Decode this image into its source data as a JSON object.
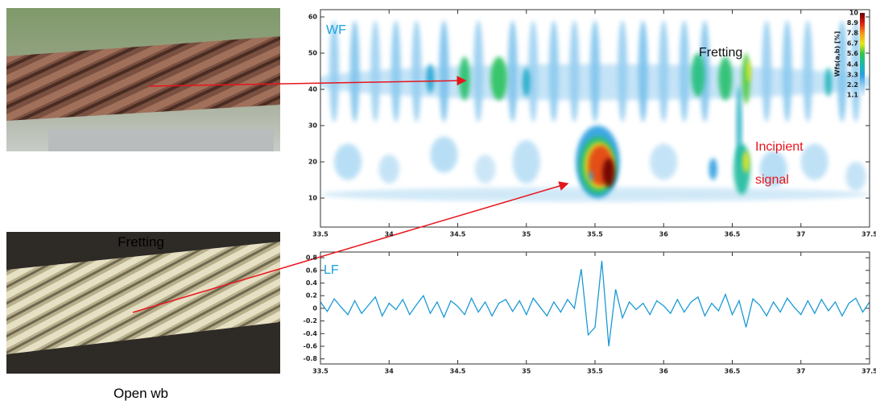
{
  "images": [
    {
      "caption": "Fretting"
    },
    {
      "caption": "Open wb"
    }
  ],
  "chart_data": [
    {
      "type": "heatmap",
      "panel_label": "WF",
      "annotations": [
        "Fretting",
        "Incipient",
        "signal"
      ],
      "xlim": [
        33.5,
        37.5
      ],
      "xticks": [
        33.5,
        34,
        34.5,
        35,
        35.5,
        36,
        36.5,
        37,
        37.5
      ],
      "ylim": [
        2,
        62
      ],
      "yticks": [
        10,
        20,
        30,
        40,
        50,
        60
      ],
      "colorbar": {
        "label": "Wfs(a,b) [%]",
        "ticks": [
          1.1,
          2.2,
          3.3,
          4.4,
          5.6,
          6.7,
          7.8,
          8.9,
          10
        ]
      },
      "blobs": [
        {
          "x": 35.5,
          "y": 42,
          "w": 4.2,
          "h": 10,
          "v": 1.6
        },
        {
          "x": 35.5,
          "y": 11,
          "w": 4,
          "h": 4,
          "v": 1.4
        },
        {
          "x": 33.6,
          "y": 45,
          "w": 0.07,
          "h": 28,
          "v": 2.2
        },
        {
          "x": 33.75,
          "y": 45,
          "w": 0.07,
          "h": 28,
          "v": 2.4
        },
        {
          "x": 33.9,
          "y": 45,
          "w": 0.07,
          "h": 28,
          "v": 2.1
        },
        {
          "x": 34.05,
          "y": 45,
          "w": 0.07,
          "h": 28,
          "v": 2.3
        },
        {
          "x": 34.2,
          "y": 45,
          "w": 0.07,
          "h": 28,
          "v": 2.2
        },
        {
          "x": 34.4,
          "y": 45,
          "w": 0.07,
          "h": 28,
          "v": 2.5
        },
        {
          "x": 34.65,
          "y": 45,
          "w": 0.07,
          "h": 28,
          "v": 2.2
        },
        {
          "x": 34.9,
          "y": 45,
          "w": 0.07,
          "h": 28,
          "v": 2.4
        },
        {
          "x": 35.05,
          "y": 45,
          "w": 0.07,
          "h": 28,
          "v": 2.1
        },
        {
          "x": 35.2,
          "y": 45,
          "w": 0.07,
          "h": 28,
          "v": 2.3
        },
        {
          "x": 35.35,
          "y": 45,
          "w": 0.07,
          "h": 28,
          "v": 2.2
        },
        {
          "x": 35.5,
          "y": 45,
          "w": 0.07,
          "h": 28,
          "v": 2.4
        },
        {
          "x": 35.7,
          "y": 45,
          "w": 0.07,
          "h": 28,
          "v": 2.2
        },
        {
          "x": 35.85,
          "y": 45,
          "w": 0.07,
          "h": 28,
          "v": 2.5
        },
        {
          "x": 36.0,
          "y": 45,
          "w": 0.07,
          "h": 28,
          "v": 2.2
        },
        {
          "x": 36.15,
          "y": 45,
          "w": 0.07,
          "h": 28,
          "v": 2.3
        },
        {
          "x": 36.3,
          "y": 45,
          "w": 0.07,
          "h": 28,
          "v": 2.4
        },
        {
          "x": 36.75,
          "y": 45,
          "w": 0.07,
          "h": 28,
          "v": 2.2
        },
        {
          "x": 36.9,
          "y": 45,
          "w": 0.07,
          "h": 28,
          "v": 2.3
        },
        {
          "x": 37.05,
          "y": 45,
          "w": 0.07,
          "h": 28,
          "v": 2.2
        },
        {
          "x": 37.3,
          "y": 45,
          "w": 0.07,
          "h": 28,
          "v": 2.4
        },
        {
          "x": 37.4,
          "y": 45,
          "w": 0.07,
          "h": 28,
          "v": 2.2
        },
        {
          "x": 33.7,
          "y": 20,
          "w": 0.2,
          "h": 10,
          "v": 1.8
        },
        {
          "x": 34.0,
          "y": 18,
          "w": 0.15,
          "h": 8,
          "v": 1.6
        },
        {
          "x": 34.4,
          "y": 22,
          "w": 0.2,
          "h": 10,
          "v": 1.8
        },
        {
          "x": 34.7,
          "y": 18,
          "w": 0.15,
          "h": 8,
          "v": 1.5
        },
        {
          "x": 35.0,
          "y": 20,
          "w": 0.2,
          "h": 12,
          "v": 1.7
        },
        {
          "x": 36.0,
          "y": 20,
          "w": 0.2,
          "h": 10,
          "v": 1.6
        },
        {
          "x": 36.8,
          "y": 18,
          "w": 0.2,
          "h": 10,
          "v": 1.8
        },
        {
          "x": 37.1,
          "y": 20,
          "w": 0.2,
          "h": 10,
          "v": 1.7
        },
        {
          "x": 37.4,
          "y": 16,
          "w": 0.15,
          "h": 8,
          "v": 1.6
        },
        {
          "x": 34.3,
          "y": 43,
          "w": 0.06,
          "h": 8,
          "v": 3.6
        },
        {
          "x": 34.55,
          "y": 43,
          "w": 0.08,
          "h": 12,
          "v": 5.2
        },
        {
          "x": 34.8,
          "y": 43,
          "w": 0.12,
          "h": 12,
          "v": 5.4
        },
        {
          "x": 35.0,
          "y": 42,
          "w": 0.06,
          "h": 8,
          "v": 3.8
        },
        {
          "x": 36.25,
          "y": 44,
          "w": 0.1,
          "h": 12,
          "v": 5.0
        },
        {
          "x": 36.45,
          "y": 43,
          "w": 0.1,
          "h": 12,
          "v": 5.2
        },
        {
          "x": 36.6,
          "y": 43,
          "w": 0.06,
          "h": 14,
          "v": 5.8
        },
        {
          "x": 36.62,
          "y": 45,
          "w": 0.03,
          "h": 6,
          "v": 6.7
        },
        {
          "x": 37.2,
          "y": 42,
          "w": 0.05,
          "h": 8,
          "v": 4.2
        },
        {
          "x": 36.55,
          "y": 30,
          "w": 0.04,
          "h": 22,
          "v": 4.0
        },
        {
          "x": 36.36,
          "y": 18,
          "w": 0.06,
          "h": 6,
          "v": 3.3
        },
        {
          "x": 36.57,
          "y": 18,
          "w": 0.12,
          "h": 14,
          "v": 4.6
        },
        {
          "x": 36.6,
          "y": 20,
          "w": 0.05,
          "h": 6,
          "v": 6.7
        },
        {
          "x": 35.52,
          "y": 20,
          "w": 0.32,
          "h": 20,
          "v": 3.3
        },
        {
          "x": 35.52,
          "y": 19,
          "w": 0.27,
          "h": 16,
          "v": 5.2
        },
        {
          "x": 35.53,
          "y": 19,
          "w": 0.22,
          "h": 13,
          "v": 6.9
        },
        {
          "x": 35.54,
          "y": 19,
          "w": 0.18,
          "h": 11,
          "v": 8.6
        },
        {
          "x": 35.6,
          "y": 17,
          "w": 0.09,
          "h": 8,
          "v": 10
        },
        {
          "x": 35.47,
          "y": 16,
          "w": 0.03,
          "h": 3,
          "v": 3.3
        }
      ]
    },
    {
      "type": "line",
      "panel_label": "LF",
      "xlim": [
        33.5,
        37.5
      ],
      "xticks": [
        33.5,
        34,
        34.5,
        35,
        35.5,
        36,
        36.5,
        37,
        37.5
      ],
      "ylim": [
        -0.88,
        0.89
      ],
      "yticks": [
        -0.8,
        -0.6,
        -0.4,
        -0.2,
        0,
        0.2,
        0.4,
        0.6,
        0.8
      ],
      "x": [
        33.5,
        33.55,
        33.6,
        33.65,
        33.7,
        33.75,
        33.8,
        33.85,
        33.9,
        33.95,
        34,
        34.05,
        34.1,
        34.15,
        34.2,
        34.25,
        34.3,
        34.35,
        34.4,
        34.45,
        34.5,
        34.55,
        34.6,
        34.65,
        34.7,
        34.75,
        34.8,
        34.85,
        34.9,
        34.95,
        35,
        35.05,
        35.1,
        35.15,
        35.2,
        35.25,
        35.3,
        35.35,
        35.4,
        35.45,
        35.5,
        35.55,
        35.6,
        35.65,
        35.7,
        35.75,
        35.8,
        35.85,
        35.9,
        35.95,
        36,
        36.05,
        36.1,
        36.15,
        36.2,
        36.25,
        36.3,
        36.35,
        36.4,
        36.45,
        36.5,
        36.55,
        36.6,
        36.65,
        36.7,
        36.75,
        36.8,
        36.85,
        36.9,
        36.95,
        37,
        37.05,
        37.1,
        37.15,
        37.2,
        37.25,
        37.3,
        37.35,
        37.4,
        37.45,
        37.5
      ],
      "series": [
        {
          "color": "#1a9ad6",
          "values": [
            0.1,
            -0.05,
            0.15,
            0.02,
            -0.1,
            0.12,
            -0.08,
            0.05,
            0.18,
            -0.12,
            0.08,
            -0.02,
            0.14,
            -0.1,
            0.06,
            0.2,
            -0.08,
            0.1,
            -0.14,
            0.12,
            0.03,
            -0.1,
            0.16,
            -0.06,
            0.1,
            -0.12,
            0.08,
            0.14,
            -0.05,
            0.12,
            -0.1,
            0.16,
            0.02,
            -0.12,
            0.1,
            -0.06,
            0.14,
            0.0,
            0.62,
            -0.42,
            -0.3,
            0.75,
            -0.6,
            0.3,
            -0.15,
            0.1,
            -0.02,
            0.08,
            -0.1,
            0.12,
            0.04,
            -0.08,
            0.14,
            -0.06,
            0.1,
            0.18,
            -0.12,
            0.08,
            -0.04,
            0.22,
            -0.1,
            0.12,
            -0.3,
            0.15,
            0.05,
            -0.12,
            0.1,
            -0.06,
            0.16,
            0.02,
            -0.1,
            0.12,
            -0.08,
            0.14,
            -0.04,
            0.1,
            -0.12,
            0.08,
            0.16,
            -0.06,
            0.1
          ]
        }
      ]
    }
  ]
}
